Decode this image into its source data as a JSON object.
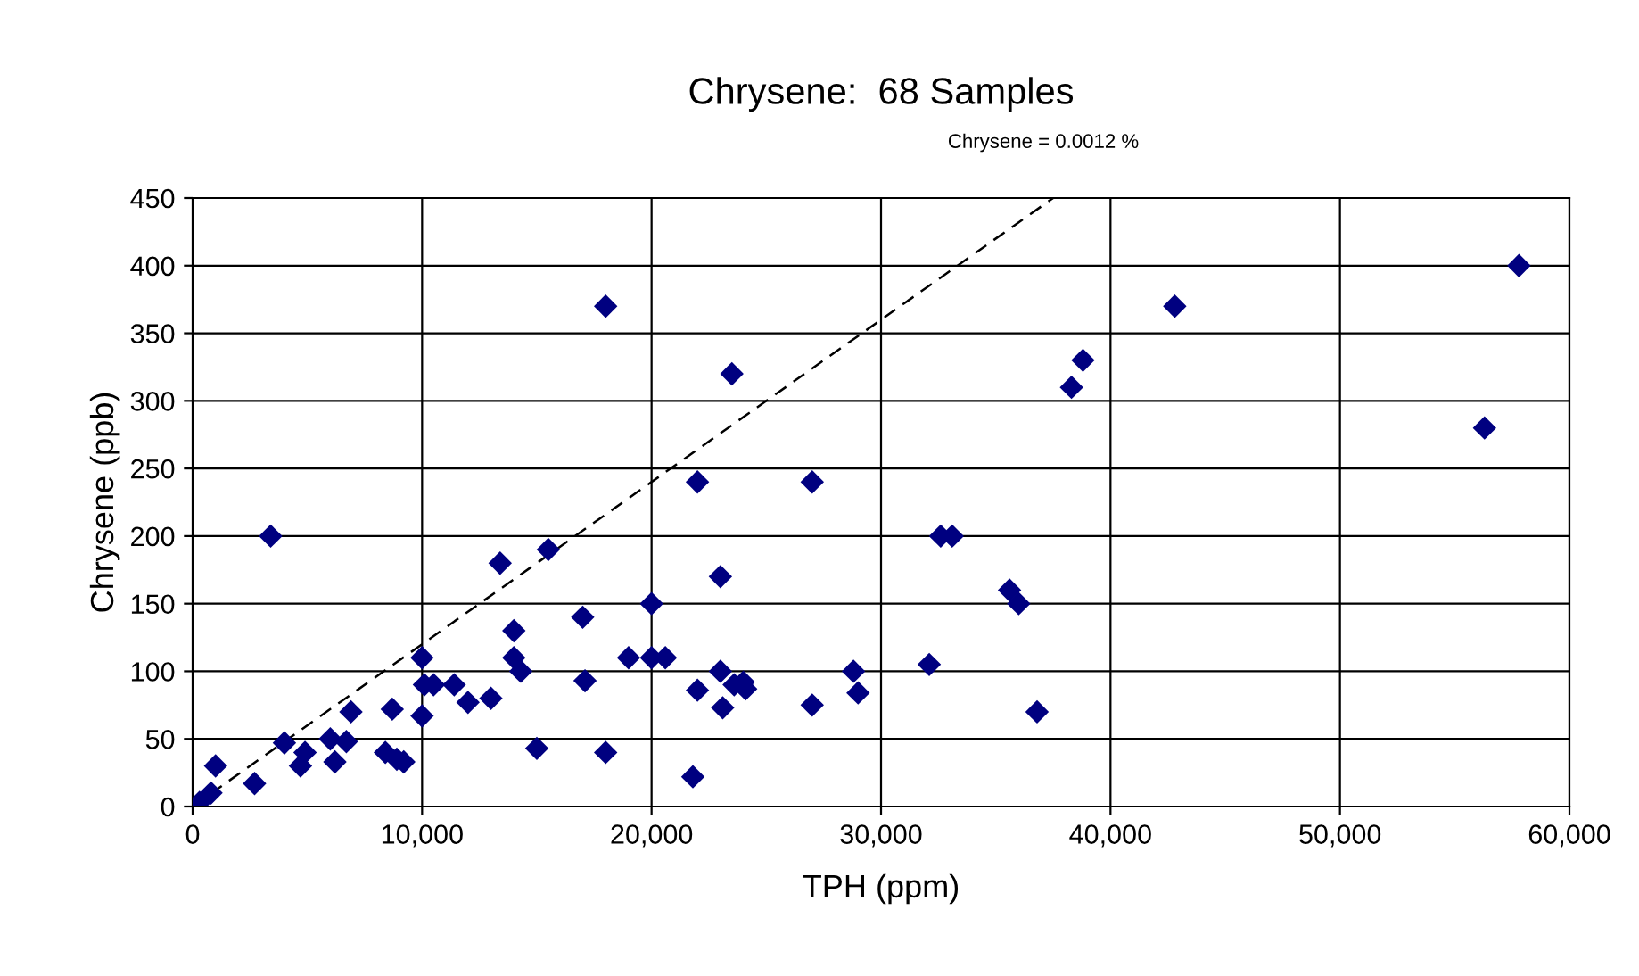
{
  "chart_data": {
    "type": "scatter",
    "title": "Chrysene:  68 Samples",
    "xlabel": "TPH (ppm)",
    "ylabel": "Chrysene (ppb)",
    "annotations": [
      "Chrysene = 0.0012 %"
    ],
    "xlim": [
      0,
      60000
    ],
    "ylim": [
      0,
      450
    ],
    "xticks": [
      {
        "value": 0,
        "label": "0"
      },
      {
        "value": 10000,
        "label": "10,000"
      },
      {
        "value": 20000,
        "label": "20,000"
      },
      {
        "value": 30000,
        "label": "30,000"
      },
      {
        "value": 40000,
        "label": "40,000"
      },
      {
        "value": 50000,
        "label": "50,000"
      },
      {
        "value": 60000,
        "label": "60,000"
      }
    ],
    "yticks": [
      0,
      50,
      100,
      150,
      200,
      250,
      300,
      350,
      400,
      450
    ],
    "grid": true,
    "legend": false,
    "series": [
      {
        "color": "#000080",
        "marker": "diamond",
        "x": [
          300,
          800,
          1000,
          2700,
          3400,
          4000,
          4700,
          4900,
          6000,
          6200,
          6700,
          6900,
          8400,
          8700,
          8900,
          9200,
          10000,
          10000,
          10100,
          10500,
          11400,
          12000,
          13000,
          13400,
          14000,
          14000,
          14300,
          15000,
          15500,
          17000,
          17100,
          18000,
          18000,
          19000,
          20000,
          20000,
          20600,
          21800,
          22000,
          22000,
          23000,
          23000,
          23100,
          23500,
          23600,
          24000,
          24100,
          27000,
          27000,
          28800,
          29000,
          32100,
          32600,
          33100,
          35600,
          36000,
          36800,
          38300,
          38800,
          42800,
          56300,
          57800
        ],
        "values": [
          3,
          10,
          30,
          17,
          200,
          47,
          30,
          40,
          50,
          33,
          48,
          70,
          40,
          72,
          35,
          33,
          110,
          67,
          90,
          90,
          90,
          77,
          80,
          180,
          130,
          110,
          100,
          43,
          190,
          140,
          93,
          370,
          40,
          110,
          150,
          110,
          110,
          22,
          240,
          86,
          170,
          100,
          73,
          320,
          90,
          92,
          87,
          75,
          240,
          100,
          84,
          105,
          200,
          200,
          160,
          150,
          70,
          310,
          330,
          370,
          280,
          400
        ]
      },
      {
        "type": "line",
        "color": "#000000",
        "line_style": "dashed",
        "marker": "none",
        "x": [
          0,
          37500
        ],
        "values": [
          0,
          450
        ]
      }
    ]
  }
}
